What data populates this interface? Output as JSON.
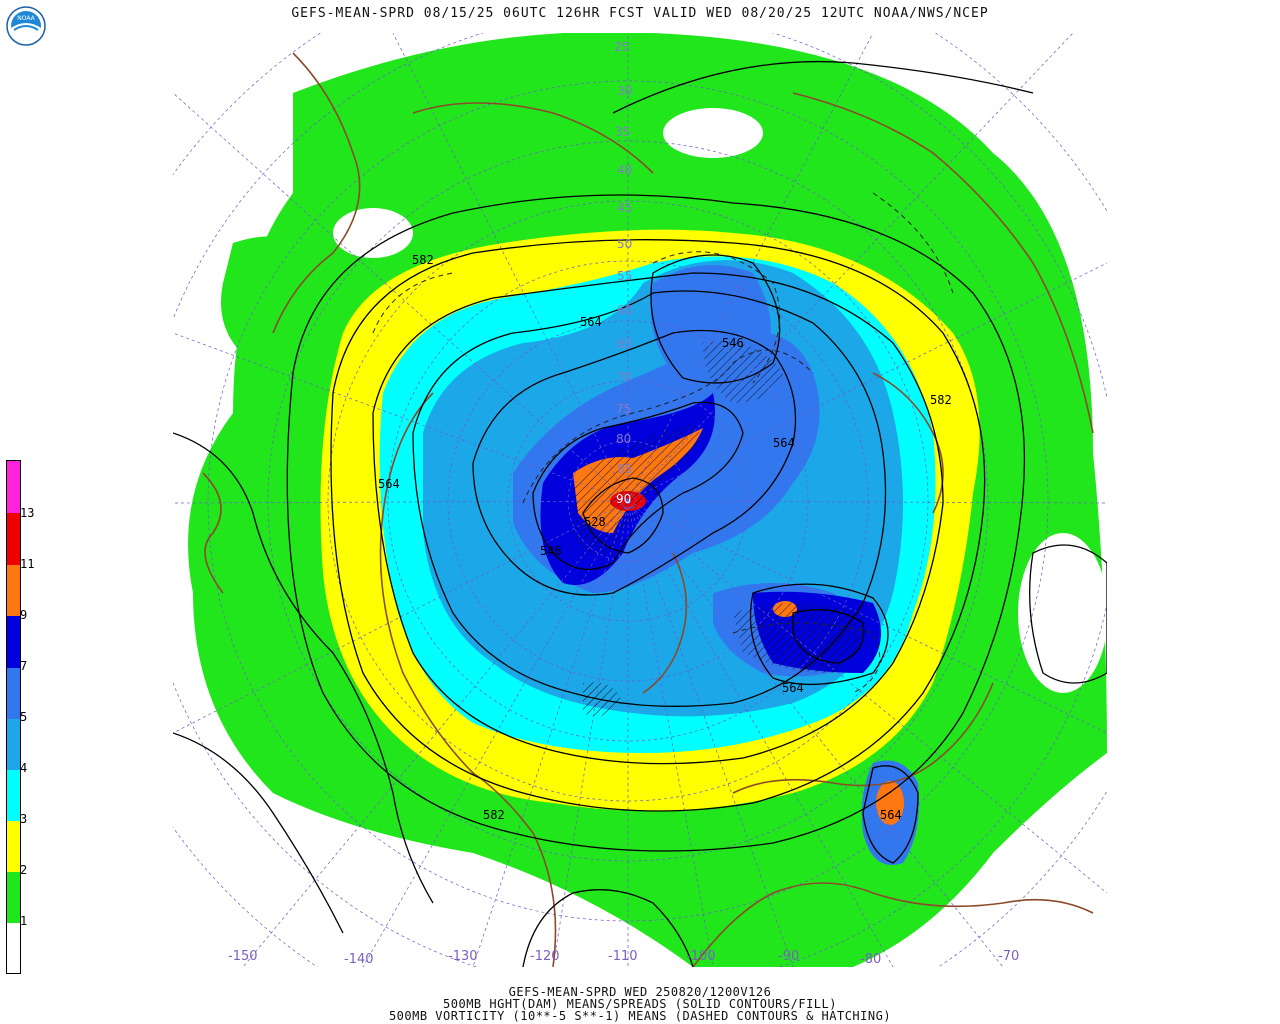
{
  "header": {
    "title": "GEFS-MEAN-SPRD 08/15/25 06UTC 126HR FCST VALID WED 08/20/25 12UTC NOAA/NWS/NCEP",
    "logo_text": "NOAA"
  },
  "colorbar": {
    "labels": [
      "1",
      "2",
      "3",
      "4",
      "5",
      "7",
      "9",
      "11",
      "13"
    ],
    "colors": [
      "#ffffff",
      "#22e61c",
      "#ffff00",
      "#00ffff",
      "#1ca8e8",
      "#3377ee",
      "#0000dd",
      "#ff7711",
      "#ee0000",
      "#ff22dd"
    ]
  },
  "longitude_labels": [
    "-150",
    "-140",
    "-130",
    "-120",
    "-110",
    "-100",
    "-90",
    "-80",
    "-70"
  ],
  "latitude_labels": [
    "25",
    "30",
    "35",
    "40",
    "45",
    "50",
    "55",
    "60",
    "65",
    "70",
    "75",
    "80",
    "85",
    "90"
  ],
  "contour_labels": [
    "582",
    "564",
    "582",
    "564",
    "564",
    "546",
    "528",
    "546",
    "564",
    "582",
    "564"
  ],
  "footer": {
    "line1": "GEFS-MEAN-SPRD WED 250820/1200V126",
    "line2": "500MB HGHT(DAM) MEANS/SPREADS (SOLID CONTOURS/FILL)",
    "line3": "500MB VORTICITY (10**-5 S**-1) MEANS (DASHED CONTOURS & HATCHING)"
  },
  "colors": {
    "green": "#22e61c",
    "yellow": "#ffff00",
    "cyan": "#00ffff",
    "sky": "#1ca8e8",
    "blue": "#3377ee",
    "navy": "#0000dd",
    "orange": "#ff7711",
    "red": "#ee0000",
    "coast": "#8b4a2a",
    "grid": "#6a5acd"
  }
}
